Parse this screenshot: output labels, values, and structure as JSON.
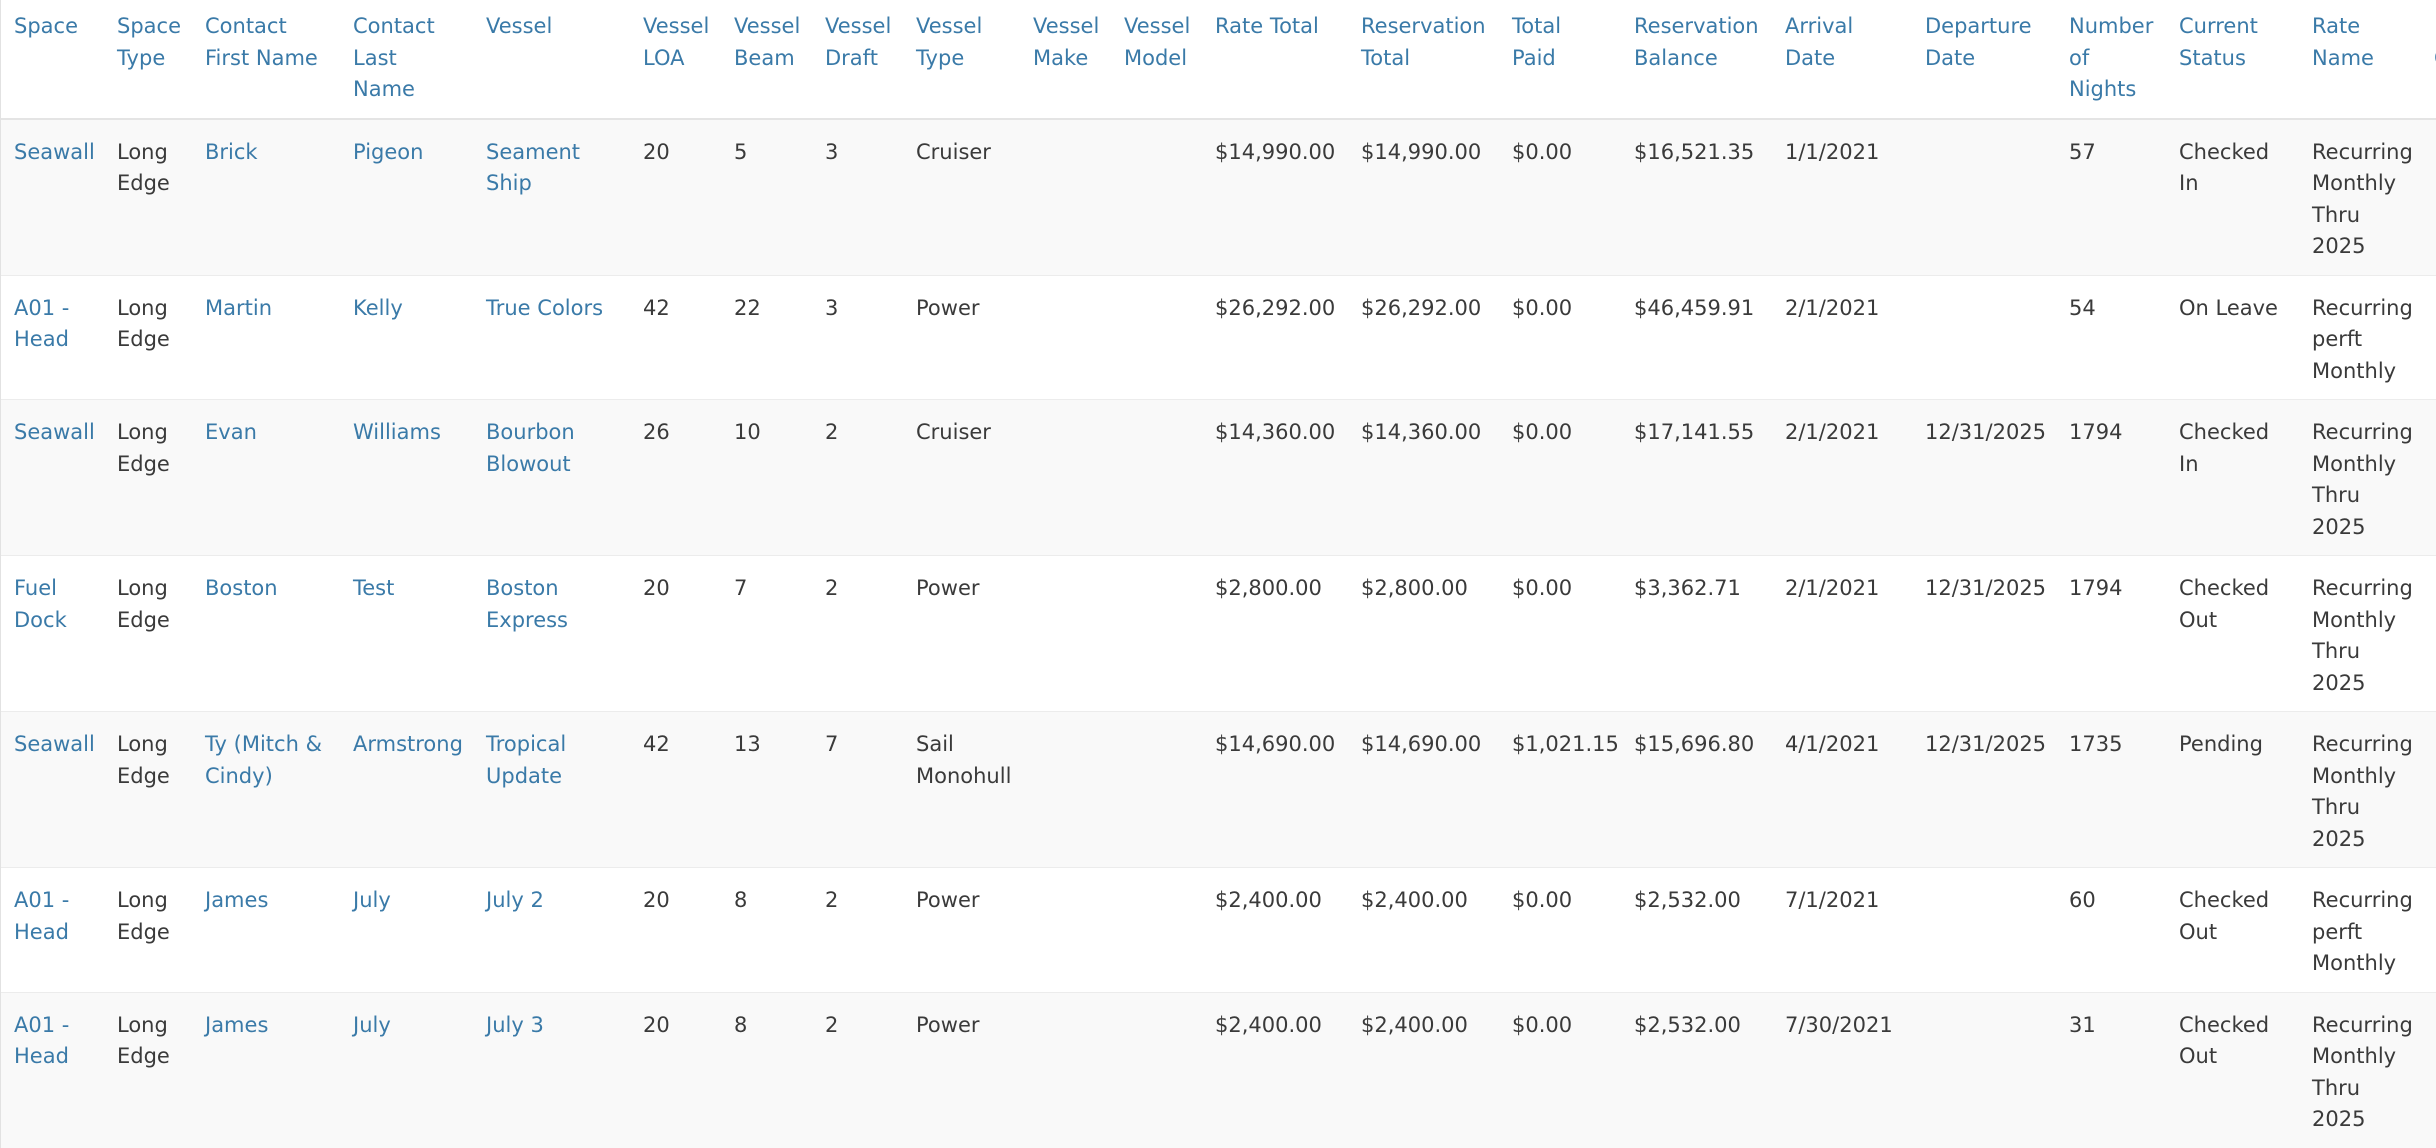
{
  "columns": [
    "Space",
    "Space Type",
    "Contact First Name",
    "Contact Last Name",
    "Vessel",
    "Vessel LOA",
    "Vessel Beam",
    "Vessel Draft",
    "Vessel Type",
    "Vessel Make",
    "Vessel Model",
    "Rate Total",
    "Reservation Total",
    "Total Paid",
    "Reservation Balance",
    "Arrival Date",
    "Departure Date",
    "Number of Nights",
    "Current Status",
    "Rate Name",
    "R C"
  ],
  "rows": [
    [
      "Seawall",
      "Long Edge",
      "Brick",
      "Pigeon",
      "Seament Ship",
      "20",
      "5",
      "3",
      "Cruiser",
      "",
      "",
      "$14,990.00",
      "$14,990.00",
      "$0.00",
      "$16,521.35",
      "1/1/2021",
      "",
      "57",
      "Checked In",
      "Recurring Monthly Thru 2025",
      ""
    ],
    [
      "A01 - Head",
      "Long Edge",
      "Martin",
      "Kelly",
      "True Colors",
      "42",
      "22",
      "3",
      "Power",
      "",
      "",
      "$26,292.00",
      "$26,292.00",
      "$0.00",
      "$46,459.91",
      "2/1/2021",
      "",
      "54",
      "On Leave",
      "Recurring perft Monthly",
      ""
    ],
    [
      "Seawall",
      "Long Edge",
      "Evan",
      "Williams",
      "Bourbon Blowout",
      "26",
      "10",
      "2",
      "Cruiser",
      "",
      "",
      "$14,360.00",
      "$14,360.00",
      "$0.00",
      "$17,141.55",
      "2/1/2021",
      "12/31/2025",
      "1794",
      "Checked In",
      "Recurring Monthly Thru 2025",
      ""
    ],
    [
      "Fuel Dock",
      "Long Edge",
      "Boston",
      "Test",
      "Boston Express",
      "20",
      "7",
      "2",
      "Power",
      "",
      "",
      "$2,800.00",
      "$2,800.00",
      "$0.00",
      "$3,362.71",
      "2/1/2021",
      "12/31/2025",
      "1794",
      "Checked Out",
      "Recurring Monthly Thru 2025",
      ""
    ],
    [
      "Seawall",
      "Long Edge",
      "Ty (Mitch & Cindy)",
      "Armstrong",
      "Tropical Update",
      "42",
      "13",
      "7",
      "Sail Monohull",
      "",
      "",
      "$14,690.00",
      "$14,690.00",
      "$1,021.15",
      "$15,696.80",
      "4/1/2021",
      "12/31/2025",
      "1735",
      "Pending",
      "Recurring Monthly Thru 2025",
      ""
    ],
    [
      "A01 - Head",
      "Long Edge",
      "James",
      "July",
      "July 2",
      "20",
      "8",
      "2",
      "Power",
      "",
      "",
      "$2,400.00",
      "$2,400.00",
      "$0.00",
      "$2,532.00",
      "7/1/2021",
      "",
      "60",
      "Checked Out",
      "Recurring perft Monthly",
      ""
    ],
    [
      "A01 - Head",
      "Long Edge",
      "James",
      "July",
      "July 3",
      "20",
      "8",
      "2",
      "Power",
      "",
      "",
      "$2,400.00",
      "$2,400.00",
      "$0.00",
      "$2,532.00",
      "7/30/2021",
      "",
      "31",
      "Checked Out",
      "Recurring Monthly Thru 2025",
      ""
    ]
  ],
  "colors": {
    "link": "#3a7aa8",
    "text": "#3a3a3a",
    "stripe": "#f9f9f9",
    "border": "#e4e4e4"
  }
}
